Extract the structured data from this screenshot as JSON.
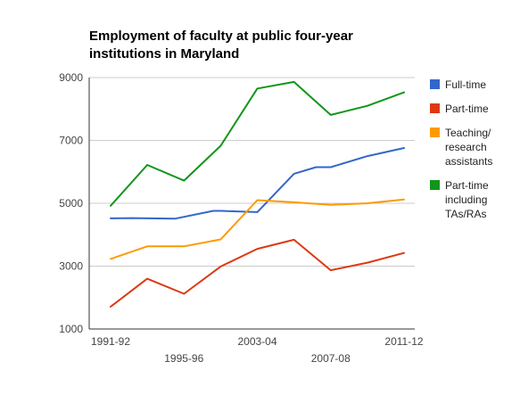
{
  "chart_data": {
    "type": "line",
    "title": "Employment of faculty at public four-year institutions in Maryland",
    "title_lines": [
      "Employment of faculty at public four-year",
      "institutions in Maryland"
    ],
    "xlabel": "",
    "ylabel": "",
    "categories": [
      "1991-92",
      "",
      "1995-96",
      "",
      "2003-04",
      "",
      "2007-08",
      "",
      "2011-12"
    ],
    "x_tick_labels": [
      {
        "index": 0,
        "label": "1991-92",
        "row": 1
      },
      {
        "index": 2,
        "label": "1995-96",
        "row": 2
      },
      {
        "index": 4,
        "label": "2003-04",
        "row": 1
      },
      {
        "index": 6,
        "label": "2007-08",
        "row": 2
      },
      {
        "index": 8,
        "label": "2011-12",
        "row": 1
      }
    ],
    "ylim": [
      1000,
      9000
    ],
    "y_ticks": [
      "9000",
      "7000",
      "5000",
      "3000",
      "1000"
    ],
    "grid": true,
    "legend_position": "right",
    "series": [
      {
        "name": "Full-time",
        "color": "#3366cc",
        "x": [
          0,
          0.6,
          1.75,
          2.8,
          3.0,
          4.0,
          5.0,
          5.6,
          6.0,
          7.0,
          8.0
        ],
        "values": [
          4520,
          4530,
          4510,
          4760,
          4760,
          4720,
          5940,
          6150,
          6150,
          6500,
          6760
        ]
      },
      {
        "name": "Part-time",
        "color": "#dc3912",
        "x": [
          0,
          1,
          2,
          3,
          4,
          5,
          6,
          7,
          8
        ],
        "values": [
          1710,
          2600,
          2120,
          2990,
          3550,
          3840,
          2870,
          3110,
          3420
        ]
      },
      {
        "name": "Teaching/ research assistants",
        "label_lines": [
          "Teaching/",
          "research",
          "assistants"
        ],
        "color": "#ff9900",
        "x": [
          0,
          1,
          2,
          3,
          4,
          5,
          6,
          7,
          8
        ],
        "values": [
          3230,
          3630,
          3630,
          3850,
          5100,
          5030,
          4950,
          5000,
          5120
        ]
      },
      {
        "name": "Part-time including TAs/RAs",
        "label_lines": [
          "Part-time",
          "including",
          "TAs/RAs"
        ],
        "color": "#109618",
        "x": [
          0,
          1,
          2,
          3,
          4,
          5,
          6,
          7,
          8
        ],
        "values": [
          4920,
          6220,
          5720,
          6830,
          8650,
          8860,
          7810,
          8100,
          8530
        ]
      }
    ]
  }
}
